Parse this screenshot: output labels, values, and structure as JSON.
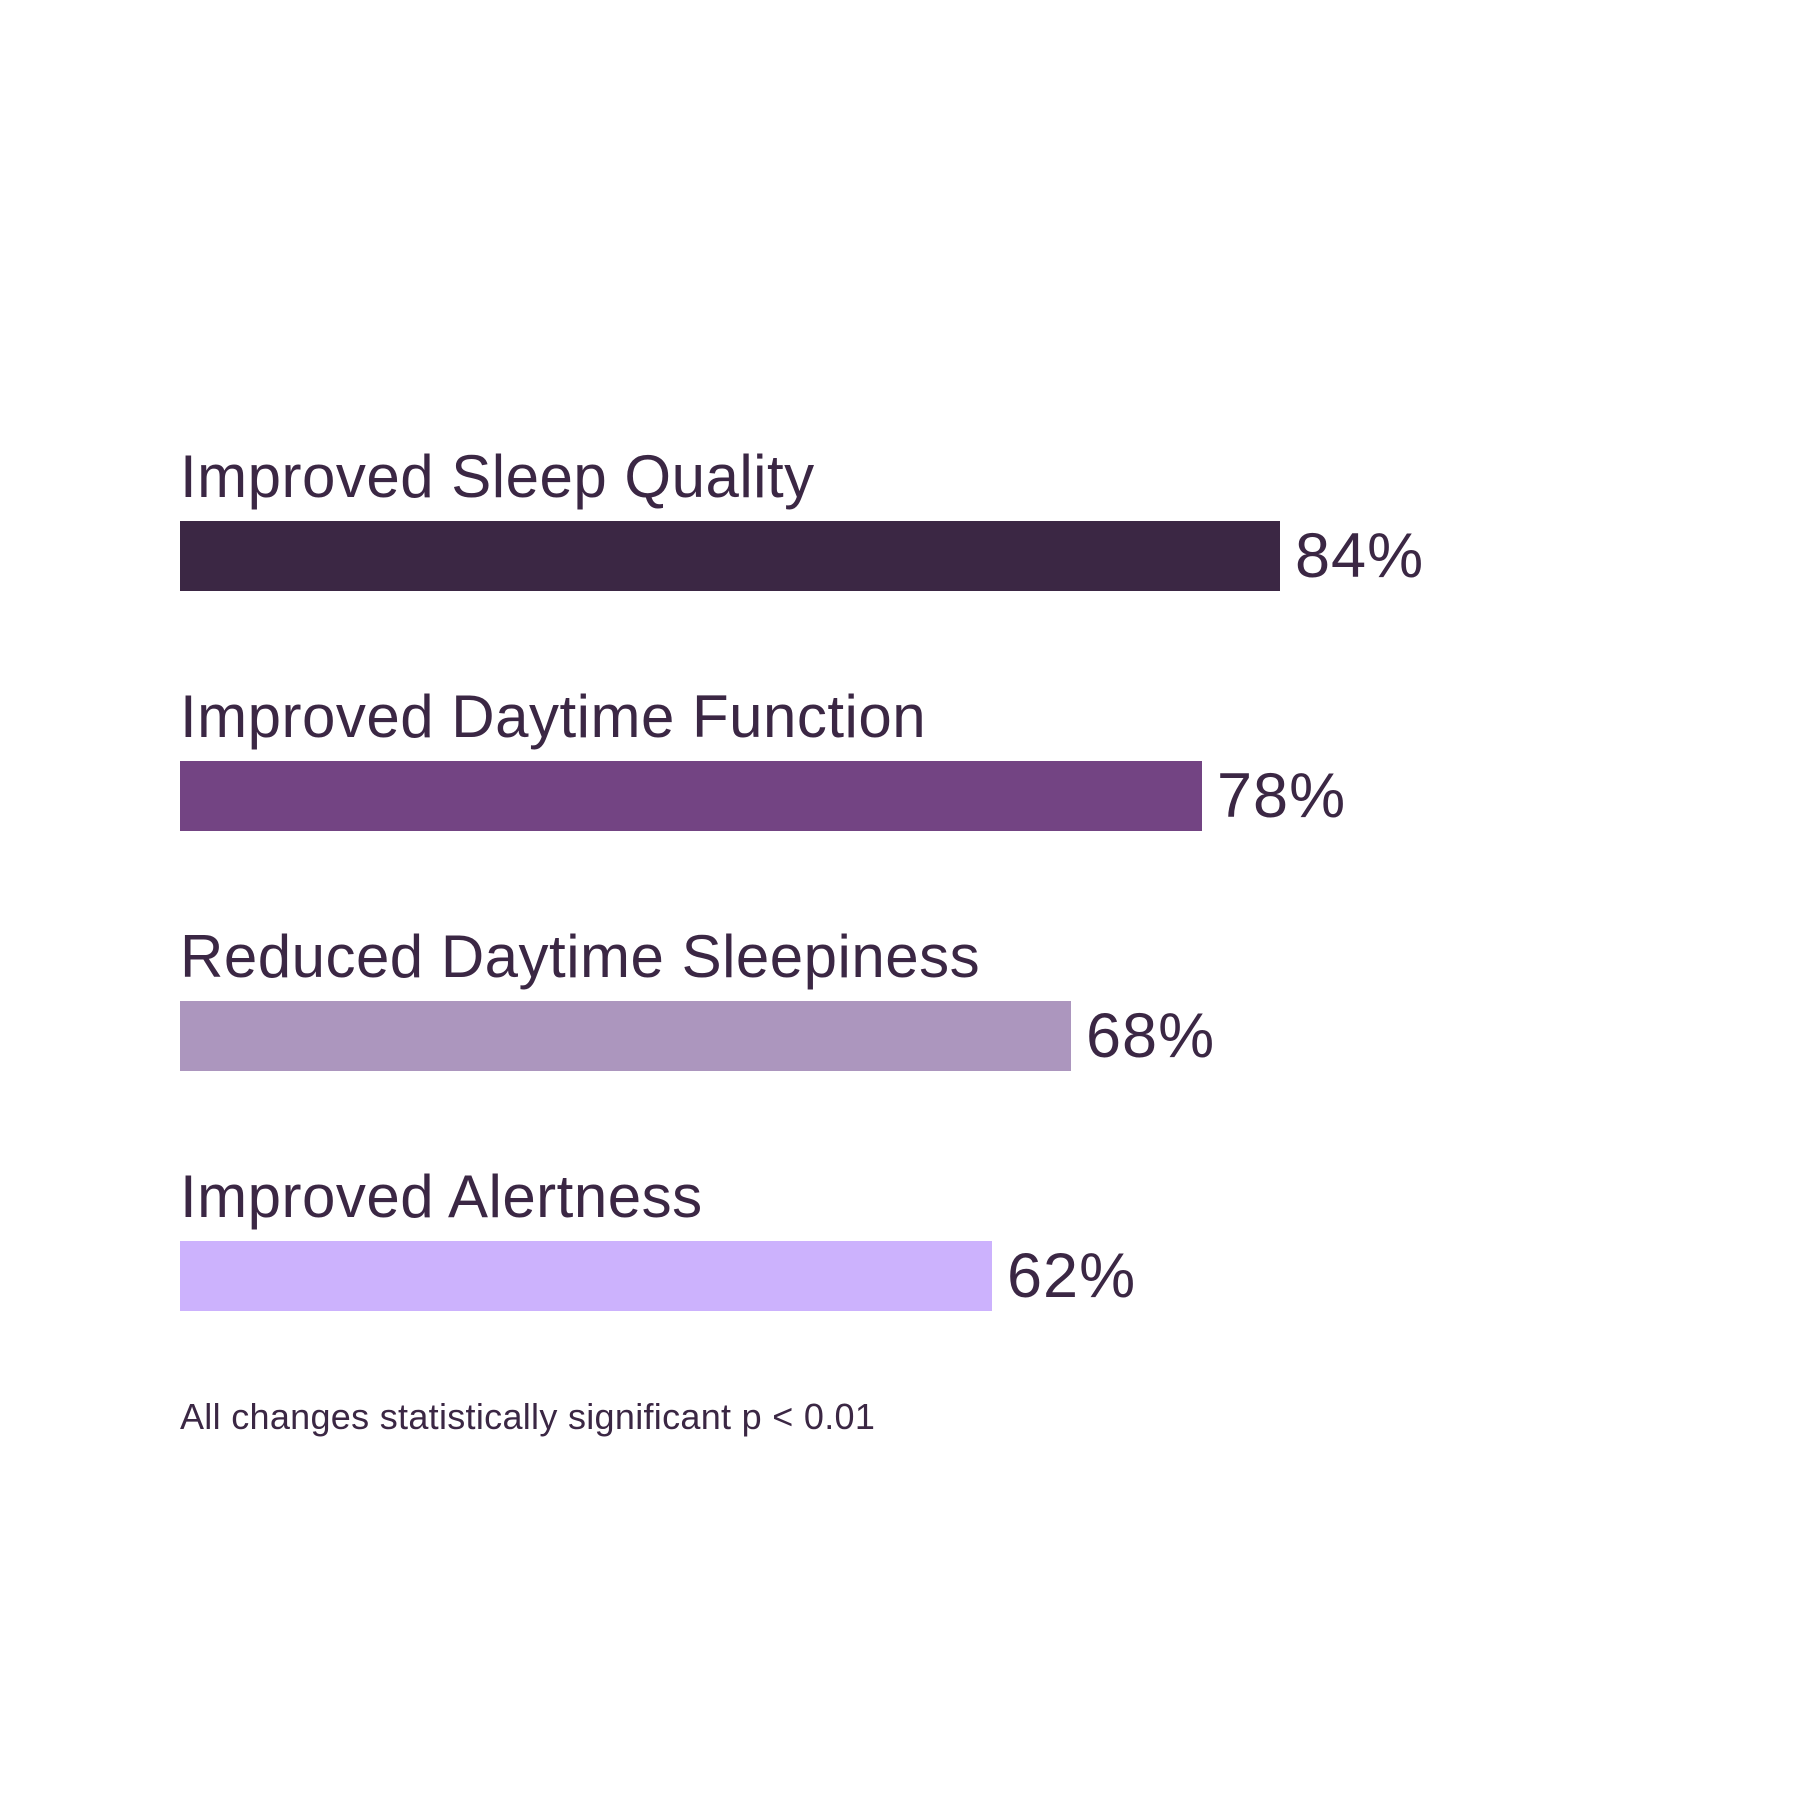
{
  "chart_data": {
    "type": "bar",
    "orientation": "horizontal",
    "categories": [
      "Improved Sleep Quality",
      "Improved Daytime Function",
      "Reduced Daytime Sleepiness",
      "Improved Alertness"
    ],
    "values": [
      84,
      78,
      68,
      62
    ],
    "value_labels": [
      "84%",
      "78%",
      "68%",
      "62%"
    ],
    "bar_colors": [
      "#3B2744",
      "#734483",
      "#AC96BE",
      "#CCB2FD"
    ],
    "xlim": [
      0,
      100
    ],
    "grid": false,
    "legend": "none",
    "value_label_position": "right-of-bar",
    "footnote": "All changes statistically significant p < 0.01",
    "text_color": "#3B2744",
    "background_color": "#FFFFFF"
  }
}
